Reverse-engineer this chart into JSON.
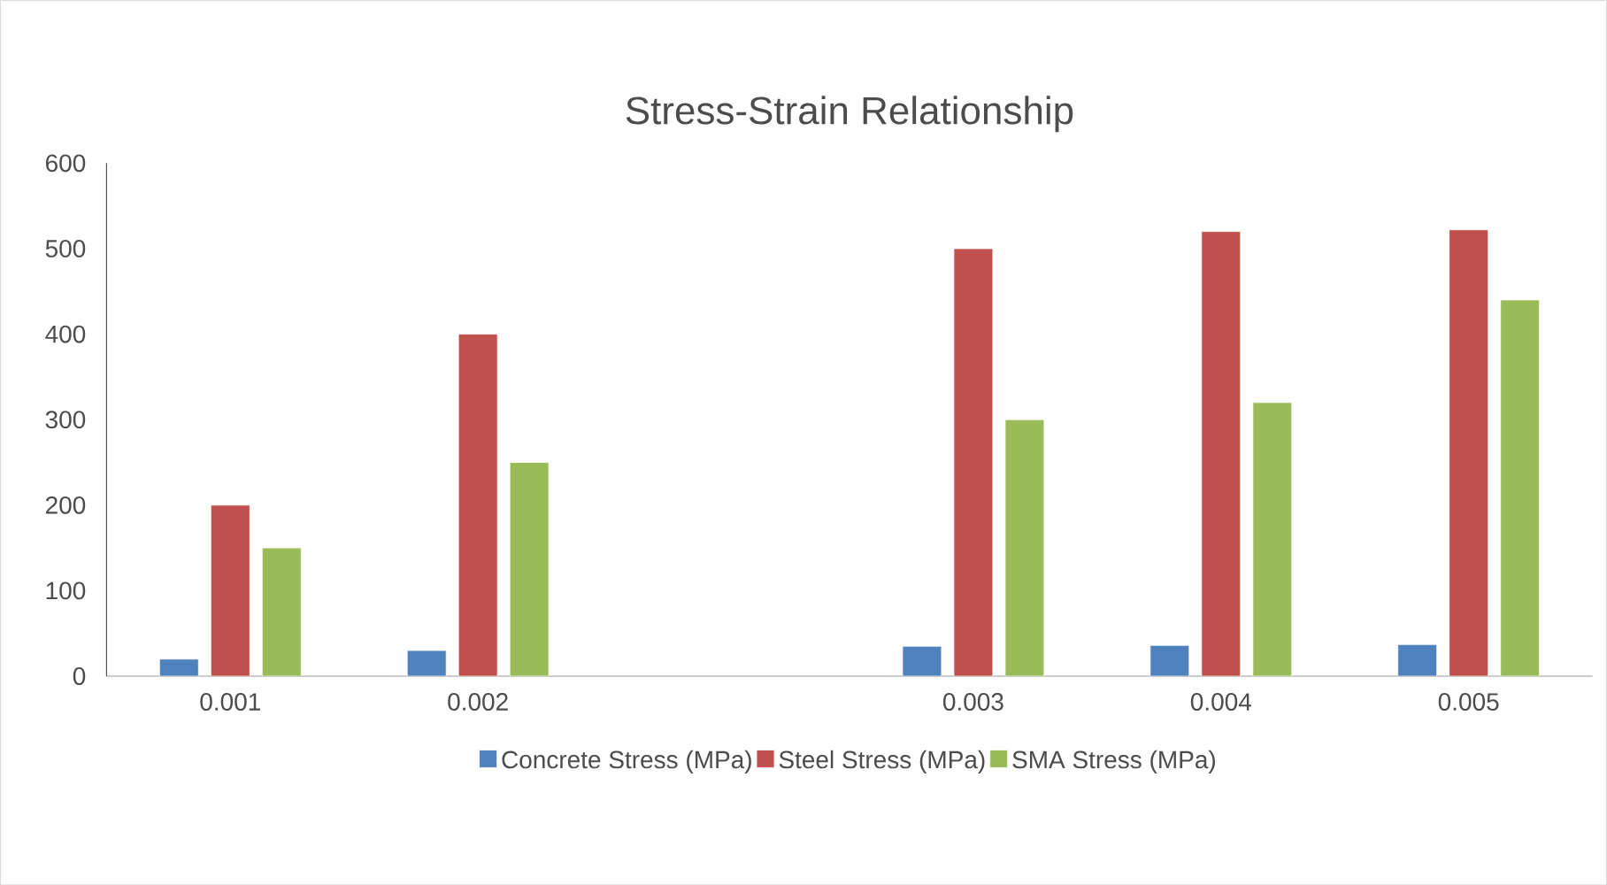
{
  "chart_data": {
    "type": "bar",
    "title": "Stress-Strain Relationship",
    "categories": [
      "0.001",
      "0.002",
      null,
      "0.003",
      "0.004",
      "0.005"
    ],
    "series": [
      {
        "name": "Concrete Stress (MPa)",
        "color": "#4f81bd",
        "values": [
          20,
          30,
          null,
          35,
          36,
          37
        ]
      },
      {
        "name": "Steel Stress (MPa)",
        "color": "#c0504d",
        "values": [
          200,
          400,
          null,
          500,
          520,
          522
        ]
      },
      {
        "name": "SMA Stress (MPa)",
        "color": "#9bbb59",
        "values": [
          150,
          250,
          null,
          300,
          320,
          440
        ]
      }
    ],
    "ylim": [
      0,
      600
    ],
    "yticks": [
      0,
      100,
      200,
      300,
      400,
      500,
      600
    ],
    "grid": false,
    "legend": "bottom"
  }
}
